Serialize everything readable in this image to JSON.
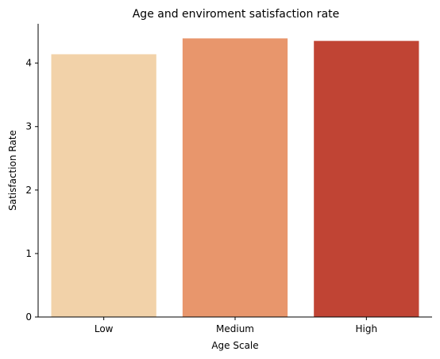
{
  "chart_data": {
    "type": "bar",
    "title": "Age and enviroment satisfaction rate",
    "xlabel": "Age Scale",
    "ylabel": "Satisfaction Rate",
    "categories": [
      "Low",
      "Medium",
      "High"
    ],
    "values": [
      4.14,
      4.39,
      4.35
    ],
    "colors": [
      "#f2d2a9",
      "#e8966c",
      "#c04434"
    ],
    "ylim": [
      0,
      4.62
    ],
    "yticks": [
      0,
      1,
      2,
      3,
      4
    ],
    "grid": false,
    "legend": "none"
  }
}
